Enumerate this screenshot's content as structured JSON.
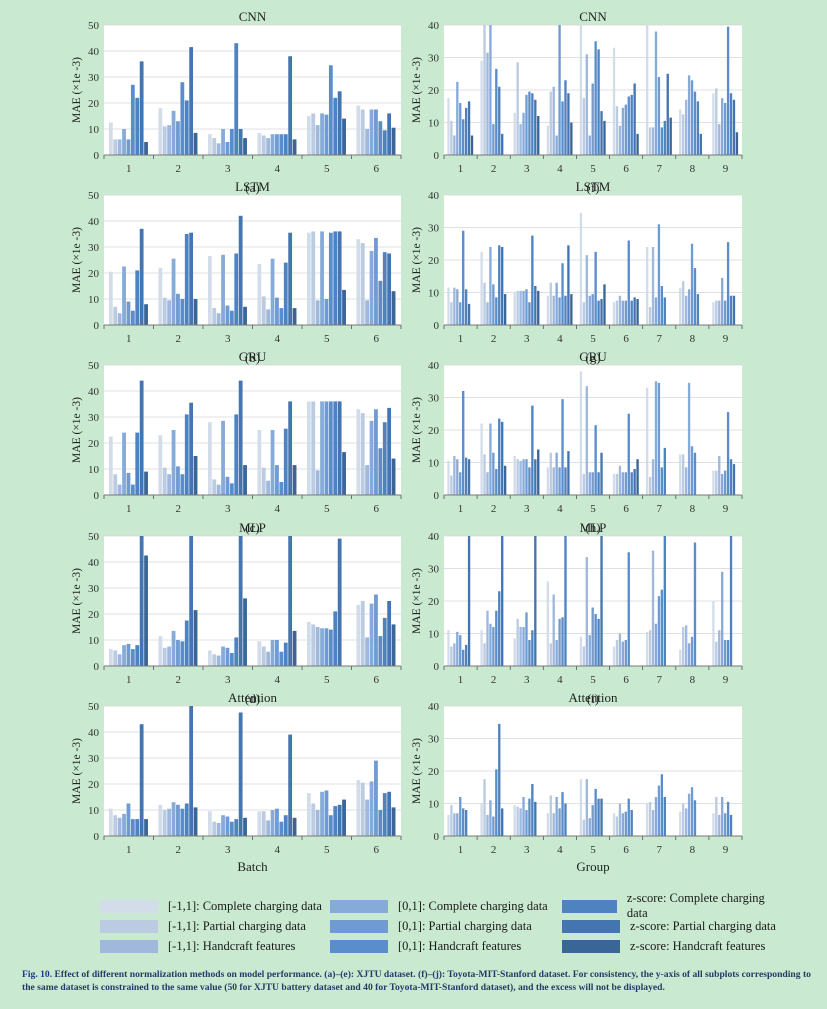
{
  "colors": [
    "#d3dde9",
    "#bacbe2",
    "#9fb8dc",
    "#87abd9",
    "#6f9bd2",
    "#5a8dcb",
    "#4e83c0",
    "#4575b0",
    "#3a6597"
  ],
  "legend": [
    "[-1,1]: Complete charging data",
    "[-1,1]: Partial charging data",
    "[-1,1]: Handcraft features",
    "[0,1]: Complete charging data",
    "[0,1]: Partial charging data",
    "[0,1]: Handcraft features",
    "z-score: Complete charging data",
    "z-score: Partial charging data",
    "z-score: Handcraft features"
  ],
  "caption": {
    "label": "Fig. 10.",
    "text": "Effect of different normalization methods on model performance. (a)–(e): XJTU dataset. (f)–(j): Toyota-MIT-Stanford dataset. For consistency, the y-axis of all subplots corresponding to the same dataset is constrained to the same value (50 for XJTU battery dataset and 40 for Toyota-MIT-Stanford dataset), and the excess will not be displayed."
  },
  "chart_data": [
    {
      "type": "bar",
      "panel": "(a)",
      "title": "CNN",
      "ylabel": "MAE (×1e -3)",
      "xlabel": "",
      "ylim": [
        0,
        50
      ],
      "yticks": [
        0,
        10,
        20,
        30,
        40,
        50
      ],
      "categories": [
        "1",
        "2",
        "3",
        "4",
        "5",
        "6"
      ],
      "groups": [
        [
          12.5,
          6,
          6,
          10,
          6,
          27,
          22,
          36,
          5
        ],
        [
          18,
          11,
          11.5,
          17,
          13,
          28,
          21,
          41.5,
          8.5
        ],
        [
          8,
          6.5,
          4.5,
          10,
          5,
          10,
          43,
          10,
          6.5
        ],
        [
          8.5,
          7.5,
          6.5,
          8,
          8,
          8,
          8,
          38,
          6
        ],
        [
          15,
          16,
          11.5,
          16,
          15.5,
          34.5,
          22,
          24.5,
          14
        ],
        [
          19,
          17.5,
          10,
          17.5,
          17.5,
          13,
          9.5,
          16,
          10.5
        ]
      ]
    },
    {
      "type": "bar",
      "panel": "(b)",
      "title": "LSTM",
      "ylabel": "MAE (×1e -3)",
      "xlabel": "",
      "ylim": [
        0,
        50
      ],
      "yticks": [
        0,
        10,
        20,
        30,
        40,
        50
      ],
      "categories": [
        "1",
        "2",
        "3",
        "4",
        "5",
        "6"
      ],
      "groups": [
        [
          20.5,
          7,
          4.5,
          22.5,
          9,
          5.5,
          21,
          37,
          8
        ],
        [
          22,
          10.5,
          9.5,
          25.5,
          12,
          10,
          35,
          35.5,
          10
        ],
        [
          26.5,
          6.5,
          4.5,
          27,
          7.5,
          5.5,
          27.5,
          42,
          7
        ],
        [
          23.5,
          11,
          6,
          25.5,
          10.5,
          6.5,
          24,
          35.5,
          6.5
        ],
        [
          35.5,
          36,
          9.5,
          36,
          10,
          35.5,
          36,
          36,
          13.5
        ],
        [
          33,
          31.5,
          9.5,
          28.5,
          33.5,
          17,
          28,
          27.5,
          13
        ]
      ]
    },
    {
      "type": "bar",
      "panel": "(c)",
      "title": "GRU",
      "ylabel": "MAE (×1e -3)",
      "xlabel": "",
      "ylim": [
        0,
        50
      ],
      "yticks": [
        0,
        10,
        20,
        30,
        40,
        50
      ],
      "categories": [
        "1",
        "2",
        "3",
        "4",
        "5",
        "6"
      ],
      "groups": [
        [
          22.5,
          8,
          4,
          24,
          8.5,
          4,
          24,
          44,
          9
        ],
        [
          23,
          10.5,
          8,
          25,
          11,
          8,
          31,
          35.5,
          15
        ],
        [
          28,
          6,
          4,
          28.5,
          7,
          4.5,
          31,
          44,
          11.5
        ],
        [
          25,
          10.5,
          5.5,
          25,
          11.5,
          5,
          25.5,
          36,
          11.5
        ],
        [
          36,
          36,
          9.5,
          36,
          36,
          36,
          36,
          36,
          16.5
        ],
        [
          33,
          31.5,
          11.5,
          28.5,
          33,
          18,
          28,
          33.5,
          14
        ]
      ]
    },
    {
      "type": "bar",
      "panel": "(d)",
      "title": "MLP",
      "ylabel": "MAE (×1e -3)",
      "xlabel": "",
      "ylim": [
        0,
        50
      ],
      "yticks": [
        0,
        10,
        20,
        30,
        40,
        50
      ],
      "categories": [
        "1",
        "2",
        "3",
        "4",
        "5",
        "6"
      ],
      "groups": [
        [
          6.5,
          6,
          4.5,
          8,
          8.5,
          6.5,
          8,
          50,
          42.5
        ],
        [
          11.5,
          7,
          7.5,
          13.5,
          10,
          9.5,
          17.5,
          50,
          21.5
        ],
        [
          6,
          4.5,
          4,
          7.5,
          7,
          5,
          11,
          50,
          26
        ],
        [
          9.5,
          7.5,
          5.5,
          10,
          10,
          5.5,
          9,
          50,
          13.5
        ],
        [
          17,
          16,
          15,
          14.5,
          14.5,
          14,
          21,
          49,
          0
        ],
        [
          23.5,
          25,
          11,
          24,
          27.5,
          11.5,
          18.5,
          25,
          16
        ]
      ]
    },
    {
      "type": "bar",
      "panel": "(e)",
      "title": "Attention",
      "ylabel": "MAE (×1e -3)",
      "xlabel": "Batch",
      "ylim": [
        0,
        50
      ],
      "yticks": [
        0,
        10,
        20,
        30,
        40,
        50
      ],
      "categories": [
        "1",
        "2",
        "3",
        "4",
        "5",
        "6"
      ],
      "groups": [
        [
          10.5,
          8,
          7,
          8.5,
          12.5,
          6.5,
          6.5,
          43,
          6.5
        ],
        [
          12,
          10,
          10.5,
          13,
          12,
          10.5,
          12.5,
          50,
          11
        ],
        [
          9.5,
          5.5,
          5,
          8,
          7.5,
          5.5,
          6.5,
          47.5,
          7
        ],
        [
          9.5,
          9.5,
          6,
          10,
          10.5,
          5.5,
          8,
          39,
          7
        ],
        [
          16.5,
          12.5,
          10,
          17,
          17.5,
          8,
          11.5,
          12,
          14
        ],
        [
          21.5,
          20.5,
          14,
          21,
          29,
          10,
          16.5,
          17,
          11
        ]
      ]
    },
    {
      "type": "bar",
      "panel": "(f)",
      "title": "CNN",
      "ylabel": "MAE (×1e -3)",
      "xlabel": "",
      "ylim": [
        0,
        40
      ],
      "yticks": [
        0,
        10,
        20,
        30,
        40
      ],
      "categories": [
        "1",
        "2",
        "3",
        "4",
        "5",
        "6",
        "7",
        "8",
        "9"
      ],
      "groups": [
        [
          17.5,
          10.5,
          6,
          22.5,
          16,
          11,
          14.5,
          16.5,
          6
        ],
        [
          29,
          40,
          31.5,
          40,
          9.5,
          26.5,
          21,
          6.5,
          0
        ],
        [
          13,
          28.5,
          9.5,
          13,
          18.5,
          19.5,
          19,
          17,
          12
        ],
        [
          9,
          19.5,
          21,
          6,
          40,
          16.5,
          23,
          19,
          10
        ],
        [
          40,
          17.5,
          31,
          6,
          22,
          35,
          32.5,
          13.5,
          10.5
        ],
        [
          33,
          15,
          9,
          14.5,
          15.5,
          18,
          18.5,
          22,
          6.5
        ],
        [
          40,
          8.5,
          8.5,
          38,
          24,
          8.5,
          10.5,
          25,
          11.5
        ],
        [
          14,
          12.5,
          17,
          24.5,
          23,
          19.5,
          16.5,
          6.5,
          0
        ],
        [
          19,
          20.5,
          9.5,
          17.5,
          16,
          39.5,
          19,
          17,
          7
        ]
      ]
    },
    {
      "type": "bar",
      "panel": "(g)",
      "title": "LSTM",
      "ylabel": "MAE (×1e -3)",
      "xlabel": "",
      "ylim": [
        0,
        40
      ],
      "yticks": [
        0,
        10,
        20,
        30,
        40
      ],
      "categories": [
        "1",
        "2",
        "3",
        "4",
        "5",
        "6",
        "7",
        "8",
        "9"
      ],
      "groups": [
        [
          11.5,
          7,
          11.5,
          11,
          7,
          29,
          11,
          6.5,
          0
        ],
        [
          22.5,
          13,
          7,
          24,
          12.5,
          8.5,
          24.5,
          24,
          9.5
        ],
        [
          10,
          10.5,
          10.5,
          10.5,
          11,
          7,
          27.5,
          12,
          10.5
        ],
        [
          9,
          13,
          9,
          13,
          8.5,
          19,
          9,
          24.5,
          9.5
        ],
        [
          34.5,
          7,
          21.5,
          9,
          9.5,
          22.5,
          7.5,
          8,
          12.5
        ],
        [
          7,
          7.5,
          9,
          7.5,
          7.5,
          26,
          7.5,
          8.5,
          8
        ],
        [
          24,
          5.5,
          24,
          8.5,
          31,
          12,
          8.5,
          0,
          0
        ],
        [
          11.5,
          13.5,
          9,
          11,
          25,
          17.5,
          9.5,
          0,
          0
        ],
        [
          7,
          7.5,
          7.5,
          14.5,
          7.5,
          25.5,
          9,
          9,
          0
        ]
      ]
    },
    {
      "type": "bar",
      "panel": "(h)",
      "title": "GRU",
      "ylabel": "MAE (×1e -3)",
      "xlabel": "",
      "ylim": [
        0,
        40
      ],
      "yticks": [
        0,
        10,
        20,
        30,
        40
      ],
      "categories": [
        "1",
        "2",
        "3",
        "4",
        "5",
        "6",
        "7",
        "8",
        "9"
      ],
      "groups": [
        [
          10.5,
          6,
          12,
          11,
          7,
          32,
          11.5,
          11,
          0
        ],
        [
          22,
          12.5,
          7,
          22,
          13,
          8,
          23.5,
          22.5,
          9
        ],
        [
          12,
          11,
          10.5,
          11,
          11,
          8.5,
          27.5,
          11,
          14
        ],
        [
          8.5,
          13,
          8.5,
          13,
          8.5,
          29.5,
          8.5,
          13.5,
          0
        ],
        [
          38,
          6.5,
          33.5,
          7,
          7,
          21.5,
          7,
          13,
          0
        ],
        [
          6.5,
          6.5,
          9,
          7,
          7,
          25,
          7,
          8,
          11
        ],
        [
          33,
          5.5,
          11,
          35,
          34.5,
          8.5,
          14.5,
          0,
          0
        ],
        [
          12.5,
          12.5,
          8.5,
          34.5,
          15,
          13,
          0,
          0,
          0
        ],
        [
          7.5,
          7.5,
          12,
          6.5,
          7.5,
          25.5,
          11,
          9.5,
          0
        ]
      ]
    },
    {
      "type": "bar",
      "panel": "(i)",
      "title": "MLP",
      "ylabel": "MAE (×1e -3)",
      "xlabel": "",
      "ylim": [
        0,
        40
      ],
      "yticks": [
        0,
        10,
        20,
        30,
        40
      ],
      "categories": [
        "1",
        "2",
        "3",
        "4",
        "5",
        "6",
        "7",
        "8",
        "9"
      ],
      "groups": [
        [
          11,
          6,
          7,
          10.5,
          9.5,
          5,
          6.5,
          40,
          0
        ],
        [
          11,
          7,
          17,
          13,
          12,
          17,
          23,
          40,
          0
        ],
        [
          8.5,
          14.5,
          12,
          12,
          16.5,
          8,
          11,
          40,
          0
        ],
        [
          26,
          7,
          22,
          8,
          14.5,
          15,
          40,
          0,
          0
        ],
        [
          9,
          6,
          33.5,
          9.5,
          18,
          16,
          14.5,
          40,
          0
        ],
        [
          6,
          8,
          10,
          7.5,
          8,
          35,
          0,
          0,
          0
        ],
        [
          10.5,
          11,
          35.5,
          13,
          21.5,
          23.5,
          40,
          0,
          0
        ],
        [
          5,
          12,
          12.5,
          7,
          9,
          38,
          0,
          0,
          0
        ],
        [
          20,
          7.5,
          11,
          29,
          8,
          8,
          40,
          0,
          0
        ]
      ]
    },
    {
      "type": "bar",
      "panel": "(j)",
      "title": "Attention",
      "ylabel": "MAE (×1e -3)",
      "xlabel": "Group",
      "ylim": [
        0,
        40
      ],
      "yticks": [
        0,
        10,
        20,
        30,
        40
      ],
      "categories": [
        "1",
        "2",
        "3",
        "4",
        "5",
        "6",
        "7",
        "8",
        "9"
      ],
      "groups": [
        [
          6.5,
          9.5,
          7,
          7,
          12,
          8.5,
          8,
          0,
          0
        ],
        [
          10,
          17.5,
          6.5,
          11,
          6,
          20.5,
          34.5,
          8.5,
          0
        ],
        [
          9.5,
          9,
          8.5,
          12,
          8,
          11.5,
          16,
          10.5,
          0
        ],
        [
          7,
          12.5,
          7,
          12,
          8.5,
          13.5,
          10,
          0,
          0
        ],
        [
          17.5,
          5,
          17.5,
          5.5,
          9.5,
          14.5,
          11.5,
          11.5,
          0
        ],
        [
          7,
          6,
          10,
          7,
          7.5,
          11.5,
          8,
          0,
          0
        ],
        [
          10,
          10.5,
          8,
          12,
          15.5,
          19,
          12,
          0,
          0
        ],
        [
          7.5,
          10,
          8.5,
          13,
          15,
          11,
          0,
          0,
          0
        ],
        [
          7,
          12,
          6.5,
          12,
          7,
          10.5,
          6.5,
          0,
          0
        ]
      ]
    }
  ]
}
